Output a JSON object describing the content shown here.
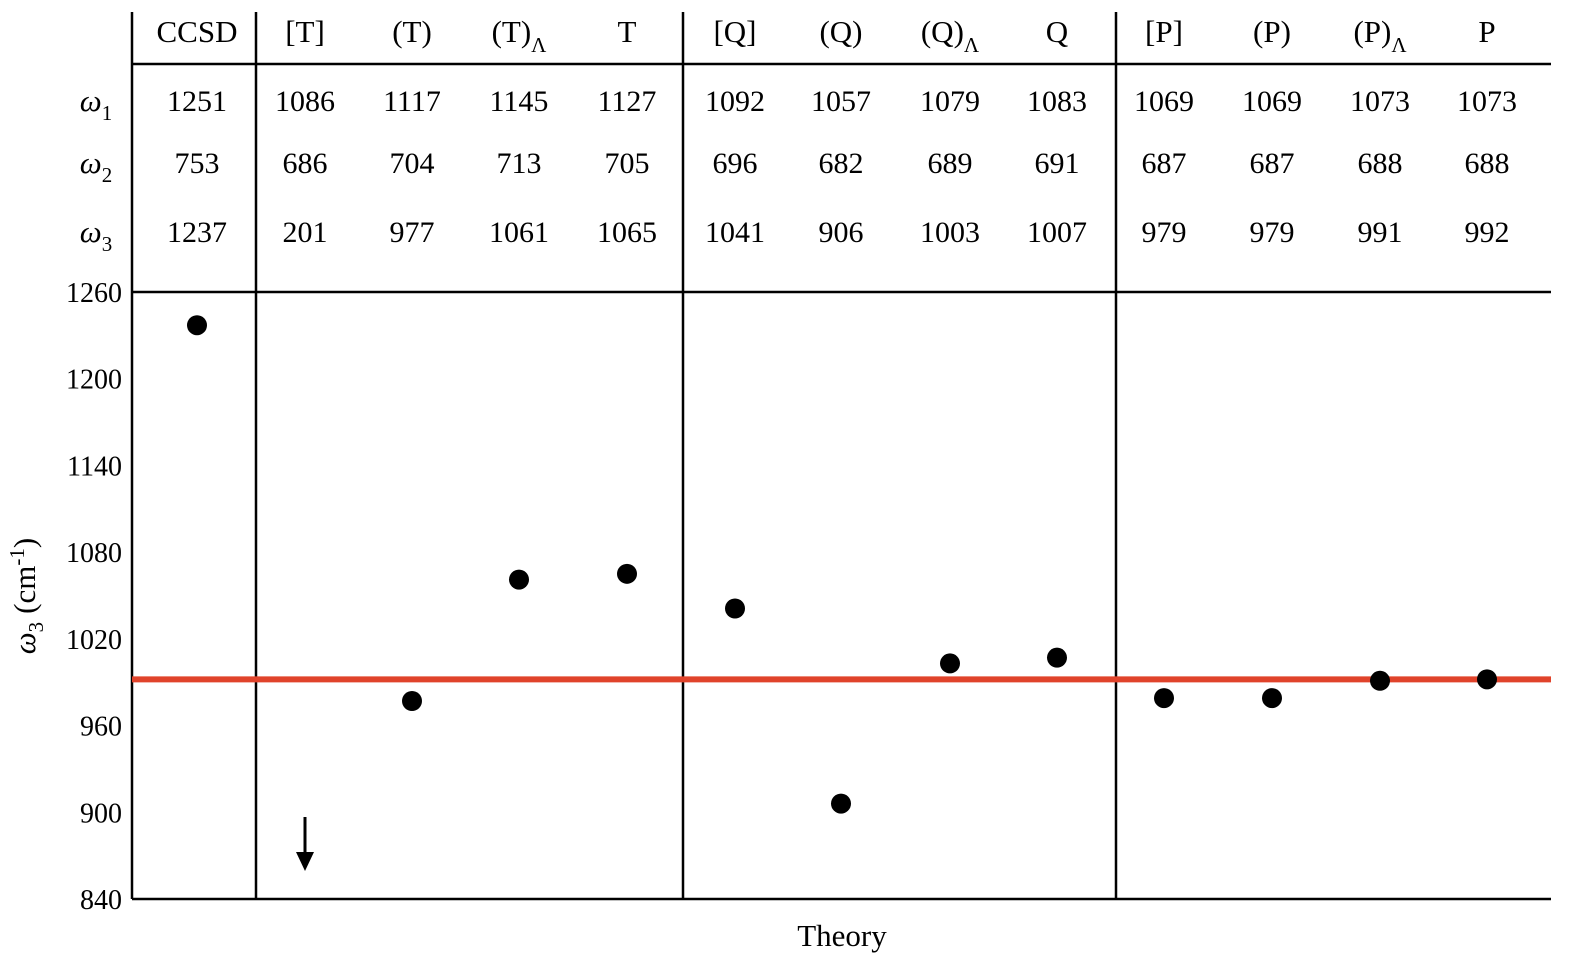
{
  "chart_data": {
    "type": "scatter",
    "xlabel": "Theory",
    "ylabel": {
      "symbol": "ω",
      "subscript": "3",
      "unit": "(cm",
      "unit_sup": "-1",
      "unit_close": ")"
    },
    "ylim": [
      840,
      1260
    ],
    "yticks": [
      1260,
      1200,
      1140,
      1080,
      1020,
      960,
      900,
      840
    ],
    "grid": false,
    "columns": [
      {
        "label": "CCSD",
        "sub": ""
      },
      {
        "label": "[T]",
        "sub": ""
      },
      {
        "label": "(T)",
        "sub": ""
      },
      {
        "label": "(T)",
        "sub": "Λ"
      },
      {
        "label": "T",
        "sub": ""
      },
      {
        "label": "[Q]",
        "sub": ""
      },
      {
        "label": "(Q)",
        "sub": ""
      },
      {
        "label": "(Q)",
        "sub": "Λ"
      },
      {
        "label": "Q",
        "sub": ""
      },
      {
        "label": "[P]",
        "sub": ""
      },
      {
        "label": "(P)",
        "sub": ""
      },
      {
        "label": "(P)",
        "sub": "Λ"
      },
      {
        "label": "P",
        "sub": ""
      }
    ],
    "table_rows": [
      {
        "symbol": "ω",
        "sub": "1",
        "values": [
          "1251",
          "1086",
          "1117",
          "1145",
          "1127",
          "1092",
          "1057",
          "1079",
          "1083",
          "1069",
          "1069",
          "1073",
          "1073"
        ]
      },
      {
        "symbol": "ω",
        "sub": "2",
        "values": [
          "753",
          "686",
          "704",
          "713",
          "705",
          "696",
          "682",
          "689",
          "691",
          "687",
          "687",
          "688",
          "688"
        ]
      },
      {
        "symbol": "ω",
        "sub": "3",
        "values": [
          "1237",
          "201",
          "977",
          "1061",
          "1065",
          "1041",
          "906",
          "1003",
          "1007",
          "979",
          "979",
          "991",
          "992"
        ]
      }
    ],
    "points": [
      1237,
      201,
      977,
      1061,
      1065,
      1041,
      906,
      1003,
      1007,
      979,
      979,
      991,
      992
    ],
    "off_scale": [
      1
    ],
    "reference_line": {
      "y": 992,
      "color": "#e0432b"
    },
    "marker_color": "#000000"
  }
}
